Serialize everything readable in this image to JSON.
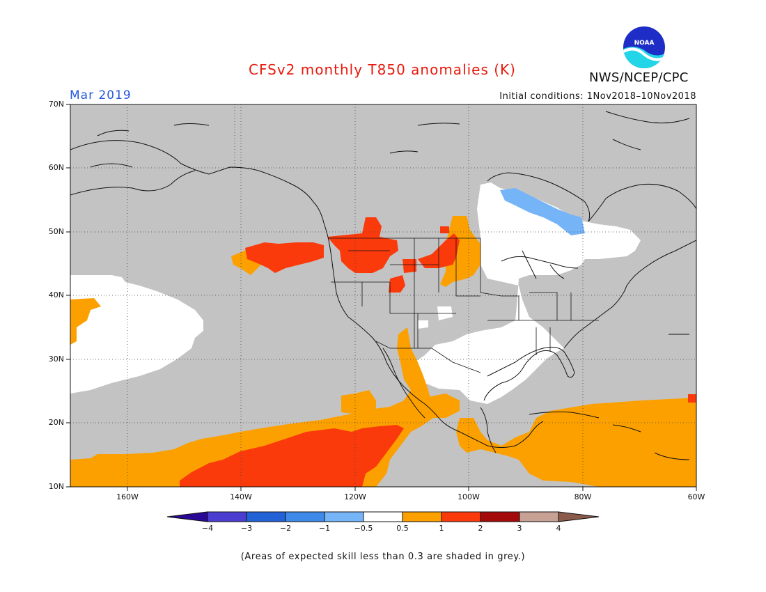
{
  "header": {
    "title": "CFSv2 monthly T850 anomalies (K)",
    "month": "Mar 2019",
    "initial_conditions": "Initial conditions: 1Nov2018–10Nov2018",
    "organization": "NWS/NCEP/CPC",
    "logo_text": "NOAA"
  },
  "map": {
    "lat_labels": [
      "70N",
      "60N",
      "50N",
      "40N",
      "30N",
      "20N",
      "10N"
    ],
    "lon_labels": [
      "160W",
      "140W",
      "120W",
      "100W",
      "80W",
      "60W"
    ],
    "lat_range": [
      10,
      70
    ],
    "lon_range": [
      -170,
      -60
    ],
    "colors": {
      "grey_low_skill": "#c3c3c3",
      "neutral": "#ffffff",
      "warm_0_5_1": "#fca000",
      "warm_1_2": "#fb3a0c",
      "cool_minus1_minus0_5": "#76b4f8"
    }
  },
  "colorbar": {
    "labels": [
      "−4",
      "−3",
      "−2",
      "−1",
      "−0.5",
      "0.5",
      "1",
      "2",
      "3",
      "4"
    ],
    "colors": [
      "#2c0896",
      "#4a3dcf",
      "#2262d6",
      "#3f8ae8",
      "#76b4f8",
      "#ffffff",
      "#fca000",
      "#fb3a0c",
      "#a40a0a",
      "#c7a294",
      "#8a5a4a"
    ]
  },
  "footnote": "(Areas of expected skill less than 0.3 are shaded in grey.)"
}
